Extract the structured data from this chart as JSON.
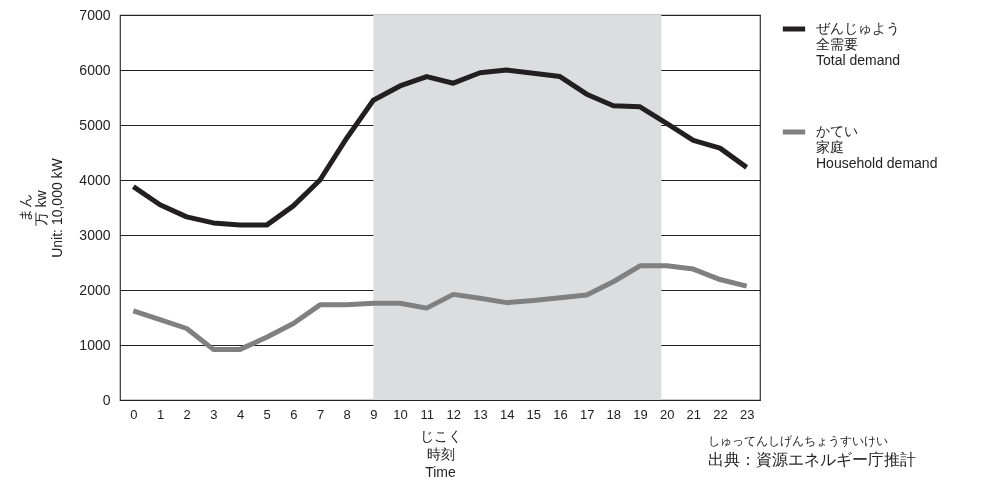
{
  "chart_data": {
    "type": "line",
    "ylabel": "まん万 kw\nUnit: 10,000 kW",
    "xlabel": "じこく時刻\nTime",
    "x": [
      0,
      1,
      2,
      3,
      4,
      5,
      6,
      7,
      8,
      9,
      10,
      11,
      12,
      13,
      14,
      15,
      16,
      17,
      18,
      19,
      20,
      21,
      22,
      23
    ],
    "xlim": [
      -0.5,
      23.5
    ],
    "xticks": [
      0,
      1,
      2,
      3,
      4,
      5,
      6,
      7,
      8,
      9,
      10,
      11,
      12,
      13,
      14,
      15,
      16,
      17,
      18,
      19,
      20,
      21,
      22,
      23
    ],
    "ylim": [
      0,
      7000
    ],
    "yticks": [
      0,
      1000,
      2000,
      3000,
      4000,
      5000,
      6000,
      7000
    ],
    "series": [
      {
        "name": "ぜんじゅよう全需要\nTotal demand",
        "color": "#231f20",
        "values": [
          3880,
          3550,
          3330,
          3220,
          3180,
          3180,
          3530,
          4000,
          4760,
          5450,
          5710,
          5880,
          5760,
          5950,
          6000,
          5940,
          5880,
          5560,
          5350,
          5330,
          5030,
          4720,
          4580,
          4230
        ]
      },
      {
        "name": "かてい家庭\nHousehold demand",
        "color": "#808080",
        "values": [
          1620,
          1460,
          1300,
          920,
          920,
          1140,
          1390,
          1730,
          1730,
          1760,
          1760,
          1670,
          1920,
          1850,
          1770,
          1810,
          1860,
          1910,
          2150,
          2440,
          2440,
          2380,
          2190,
          2070
        ]
      }
    ],
    "bands": [
      {
        "axis": "x",
        "from": 9,
        "to": 19.8,
        "color": "#dcdddf"
      }
    ],
    "annotations": [
      "しゅってんしげんちょうすいけい出典：資源エネルギー庁推計"
    ],
    "grid": "y",
    "legend": "right",
    "line_style": "solid",
    "marker": "none"
  }
}
